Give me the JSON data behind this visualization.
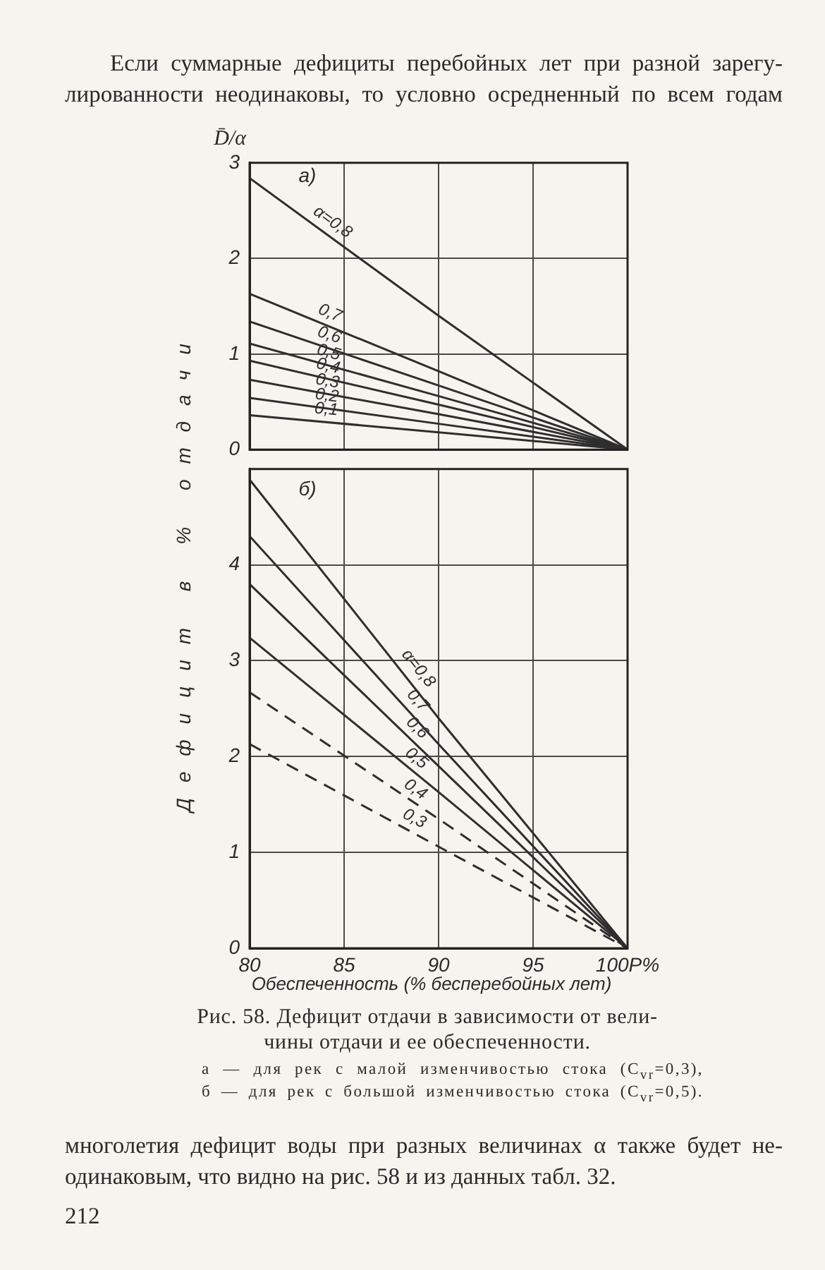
{
  "chart_data": [
    {
      "type": "line",
      "title": "а)",
      "ylabel": "D̄/α",
      "x": [
        80,
        90,
        100
      ],
      "xlim": [
        80,
        100
      ],
      "xticks": [
        80,
        85,
        90,
        95,
        100
      ],
      "ylim": [
        0,
        3
      ],
      "yticks": [
        0,
        1,
        2,
        3
      ],
      "grid": true,
      "tick_labels": "y",
      "series": [
        {
          "name": "α=0,8",
          "color": "#2e2e2e",
          "values": [
            2.84,
            1.4,
            0
          ]
        },
        {
          "name": "0,7",
          "color": "#2e2e2e",
          "values": [
            1.63,
            0.82,
            0
          ]
        },
        {
          "name": "0,6",
          "color": "#2e2e2e",
          "values": [
            1.34,
            0.67,
            0
          ]
        },
        {
          "name": "0,5",
          "color": "#2e2e2e",
          "values": [
            1.11,
            0.56,
            0
          ]
        },
        {
          "name": "0,4",
          "color": "#2e2e2e",
          "values": [
            0.93,
            0.47,
            0
          ]
        },
        {
          "name": "0,3",
          "color": "#2e2e2e",
          "values": [
            0.73,
            0.37,
            0
          ]
        },
        {
          "name": "0,2",
          "color": "#2e2e2e",
          "values": [
            0.54,
            0.27,
            0
          ]
        },
        {
          "name": "0,1",
          "color": "#2e2e2e",
          "values": [
            0.36,
            0.18,
            0
          ]
        }
      ],
      "annotations": [
        "Если суммарные дефициты перебойных лет при разной зарегу-",
        "лированности неодинаковы, то условно осредненный по всем годам"
      ]
    },
    {
      "type": "line",
      "title": "б)",
      "ylabel": "Дефицит в % отдачи",
      "xlabel": "Обеспеченность (% бесперебойных лет)",
      "x": [
        80,
        90,
        100
      ],
      "xlim": [
        80,
        100
      ],
      "xticks": [
        80,
        85,
        90,
        95,
        {
          "value": 100,
          "label": "100P%"
        }
      ],
      "ylim": [
        0,
        5
      ],
      "yticks": [
        0,
        1,
        2,
        3,
        4
      ],
      "grid": true,
      "series": [
        {
          "name": "α=0,8",
          "color": "#2e2e2e",
          "values": [
            4.89,
            2.4,
            0
          ]
        },
        {
          "name": "0,7",
          "color": "#2e2e2e",
          "values": [
            4.3,
            2.13,
            0
          ]
        },
        {
          "name": "0,6",
          "color": "#2e2e2e",
          "values": [
            3.8,
            1.9,
            0
          ]
        },
        {
          "name": "0,5",
          "color": "#2e2e2e",
          "values": [
            3.24,
            1.63,
            0
          ]
        },
        {
          "name": "0,4",
          "color": "#2e2e2e",
          "line_style": "dashed",
          "values": [
            2.67,
            1.35,
            0
          ]
        },
        {
          "name": "0,3",
          "color": "#2e2e2e",
          "line_style": "dashed",
          "values": [
            2.13,
            1.06,
            0
          ]
        }
      ],
      "annotations": [
        "Рис. 58. Дефицит отдачи в зависимости от вели-",
        "чины отдачи и ее обеспеченности.",
        "а — для рек с малой изменчивостью стока (C$_{vr}$=0,3),",
        "б — для рек с большой изменчивостью стока (C$_{vr}$=0,5).",
        "многолетия дефицит воды при разных величинах α также будет не-",
        "одинаковым, что видно на рис. 58 и из данных табл. 32.",
        "212"
      ]
    }
  ]
}
